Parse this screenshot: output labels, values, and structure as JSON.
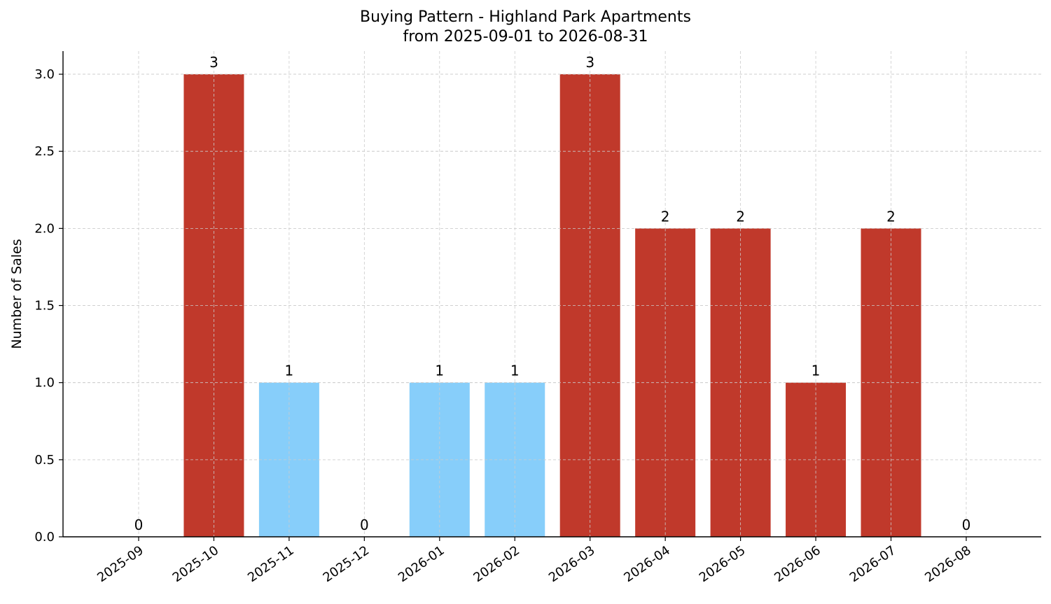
{
  "chart_data": {
    "type": "bar",
    "title": "Buying Pattern - Highland Park Apartments",
    "subtitle": "from 2025-09-01 to 2026-08-31",
    "xlabel": "",
    "ylabel": "Number of Sales",
    "categories": [
      "2025-09",
      "2025-10",
      "2025-11",
      "2025-12",
      "2026-01",
      "2026-02",
      "2026-03",
      "2026-04",
      "2026-05",
      "2026-06",
      "2026-07",
      "2026-08"
    ],
    "values": [
      0,
      3,
      1,
      0,
      1,
      1,
      3,
      2,
      2,
      1,
      2,
      0
    ],
    "bar_colors": [
      "#c0392b",
      "#c0392b",
      "#87cefa",
      "#c0392b",
      "#87cefa",
      "#87cefa",
      "#c0392b",
      "#c0392b",
      "#c0392b",
      "#c0392b",
      "#c0392b",
      "#c0392b"
    ],
    "data_labels": [
      "0",
      "3",
      "1",
      "0",
      "1",
      "1",
      "3",
      "2",
      "2",
      "1",
      "2",
      "0"
    ],
    "yticks": [
      "0.0",
      "0.5",
      "1.0",
      "1.5",
      "2.0",
      "2.5",
      "3.0"
    ],
    "ylim": [
      0,
      3.15
    ],
    "grid": true,
    "legend": "none"
  }
}
